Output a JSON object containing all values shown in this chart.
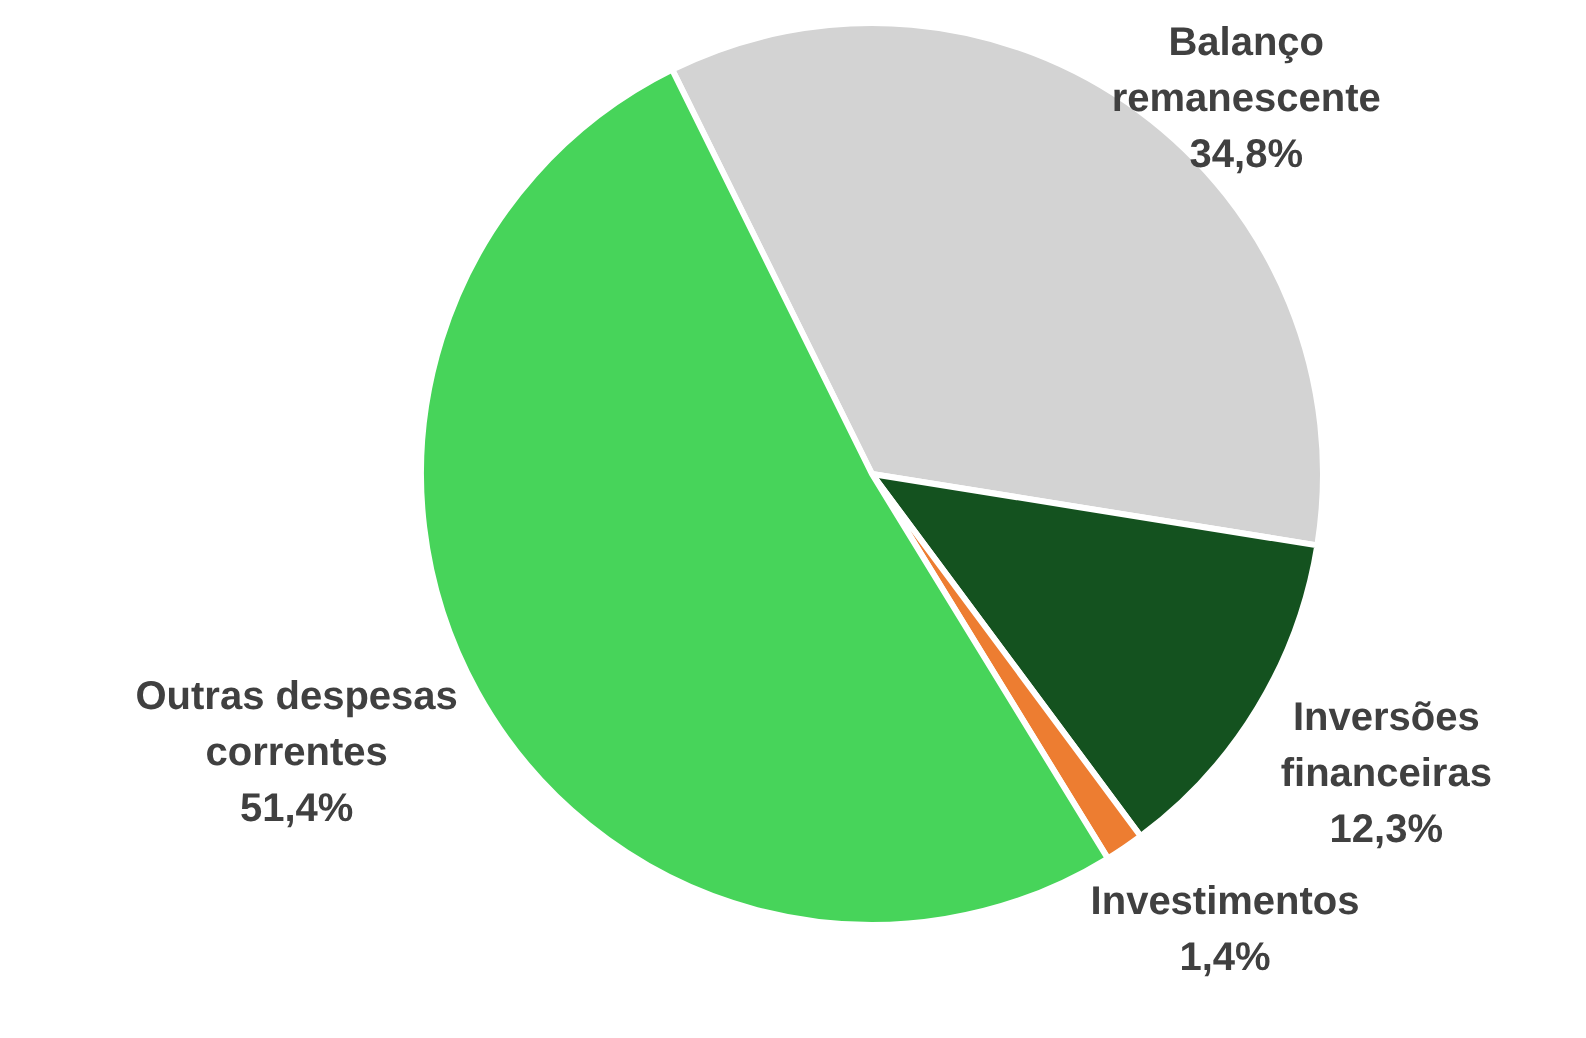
{
  "chart_data": {
    "type": "pie",
    "categories": [
      "Balanço remanescente",
      "Inversões financeiras",
      "Investimentos",
      "Outras despesas correntes"
    ],
    "values": [
      34.8,
      12.3,
      1.4,
      51.4
    ],
    "colors": [
      "#d3d3d3",
      "#14521f",
      "#ed7d31",
      "#47d45a"
    ],
    "value_labels": [
      "34,8%",
      "12,3%",
      "1,4%",
      "51,4%"
    ],
    "legend": false
  }
}
